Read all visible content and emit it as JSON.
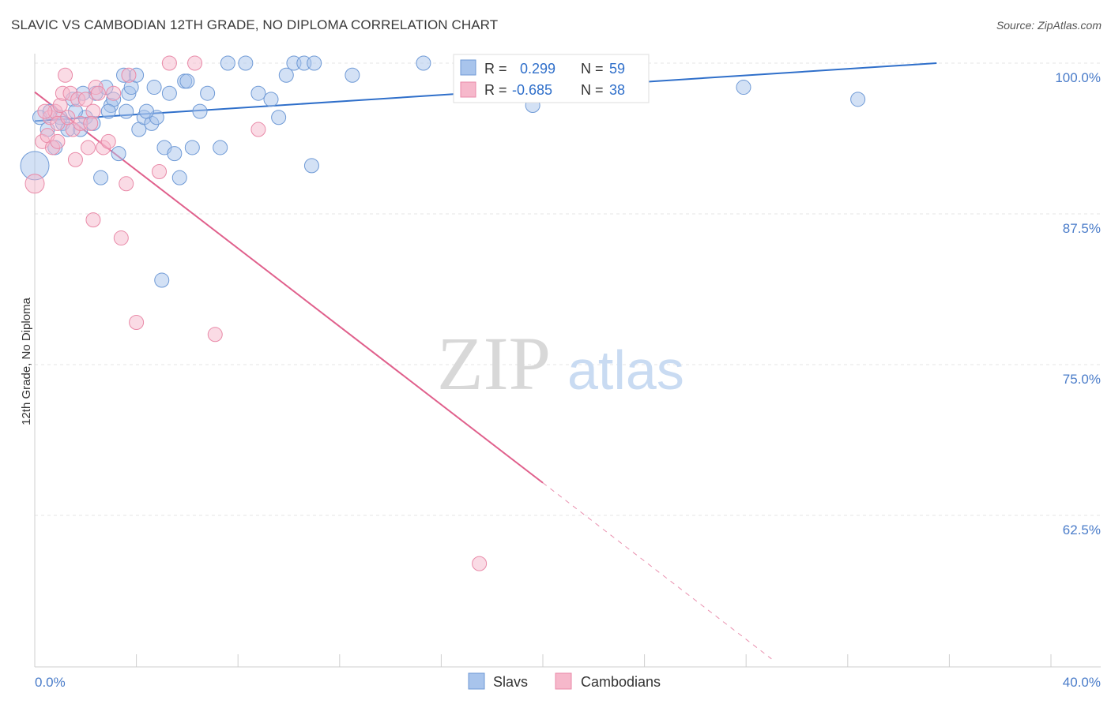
{
  "title": "SLAVIC VS CAMBODIAN 12TH GRADE, NO DIPLOMA CORRELATION CHART",
  "source": "Source: ZipAtlas.com",
  "watermark": {
    "zip": "ZIP",
    "atlas": "atlas"
  },
  "colors": {
    "slavs_fill": "#a8c4ec",
    "slavs_stroke": "#6f9ad6",
    "slavs_line": "#2f6fca",
    "cambodians_fill": "#f6b8cb",
    "cambodians_stroke": "#e98aa8",
    "cambodians_line": "#e0608c",
    "tick_label": "#4a7cc9"
  },
  "stats": [
    {
      "r_label": "R =",
      "r_value": "0.299",
      "n_label": "N =",
      "n_value": "59"
    },
    {
      "r_label": "R =",
      "r_value": "-0.685",
      "n_label": "N =",
      "n_value": "38"
    }
  ],
  "legend": [
    "Slavs",
    "Cambodians"
  ],
  "chart_data": {
    "type": "scatter",
    "title": "SLAVIC VS CAMBODIAN 12TH GRADE, NO DIPLOMA CORRELATION CHART",
    "xlabel": "",
    "ylabel": "12th Grade, No Diploma",
    "x_tick_labels": [
      "0.0%",
      "40.0%"
    ],
    "y_tick_labels": [
      "100.0%",
      "87.5%",
      "75.0%",
      "62.5%"
    ],
    "y_ticks": [
      100.0,
      87.5,
      75.0,
      62.5
    ],
    "xlim": [
      0,
      40
    ],
    "ylim": [
      50,
      101
    ],
    "grid": true,
    "series": [
      {
        "name": "Slavs",
        "points": [
          [
            0.0,
            91.5,
            18
          ],
          [
            0.2,
            95.5,
            9
          ],
          [
            0.5,
            94.5,
            9
          ],
          [
            0.8,
            93.0,
            9
          ],
          [
            1.0,
            95.5,
            9
          ],
          [
            1.1,
            95.0,
            9
          ],
          [
            1.3,
            94.5,
            9
          ],
          [
            1.5,
            97.0,
            9
          ],
          [
            1.8,
            94.5,
            9
          ],
          [
            2.0,
            95.5,
            9
          ],
          [
            2.3,
            95.0,
            9
          ],
          [
            2.4,
            97.5,
            9
          ],
          [
            2.6,
            90.5,
            9
          ],
          [
            2.8,
            98.0,
            9
          ],
          [
            3.0,
            96.5,
            9
          ],
          [
            3.1,
            97.0,
            9
          ],
          [
            3.3,
            92.5,
            9
          ],
          [
            3.5,
            99.0,
            9
          ],
          [
            3.7,
            97.5,
            9
          ],
          [
            3.8,
            98.0,
            9
          ],
          [
            4.0,
            99.0,
            9
          ],
          [
            4.1,
            94.5,
            9
          ],
          [
            4.3,
            95.5,
            9
          ],
          [
            4.6,
            95.0,
            9
          ],
          [
            4.7,
            98.0,
            9
          ],
          [
            4.8,
            95.5,
            9
          ],
          [
            5.0,
            82.0,
            9
          ],
          [
            5.1,
            93.0,
            9
          ],
          [
            5.3,
            97.5,
            9
          ],
          [
            5.5,
            92.5,
            9
          ],
          [
            5.7,
            90.5,
            9
          ],
          [
            5.9,
            98.5,
            9
          ],
          [
            6.0,
            98.5,
            9
          ],
          [
            6.2,
            93.0,
            9
          ],
          [
            6.5,
            96.0,
            9
          ],
          [
            6.8,
            97.5,
            9
          ],
          [
            7.3,
            93.0,
            9
          ],
          [
            7.6,
            100.0,
            9
          ],
          [
            8.3,
            100.0,
            9
          ],
          [
            8.8,
            97.5,
            9
          ],
          [
            9.3,
            97.0,
            9
          ],
          [
            9.6,
            95.5,
            9
          ],
          [
            9.9,
            99.0,
            9
          ],
          [
            10.2,
            100.0,
            9
          ],
          [
            10.6,
            100.0,
            9
          ],
          [
            10.9,
            91.5,
            9
          ],
          [
            11.0,
            100.0,
            9
          ],
          [
            12.5,
            99.0,
            9
          ],
          [
            15.3,
            100.0,
            9
          ],
          [
            16.9,
            100.0,
            9
          ],
          [
            19.6,
            96.5,
            9
          ],
          [
            27.9,
            98.0,
            9
          ],
          [
            32.4,
            97.0,
            9
          ],
          [
            0.6,
            96.0,
            9
          ],
          [
            1.6,
            96.0,
            9
          ],
          [
            2.9,
            96.0,
            9
          ],
          [
            4.4,
            96.0,
            9
          ],
          [
            1.9,
            97.5,
            9
          ],
          [
            3.6,
            96.0,
            9
          ]
        ]
      },
      {
        "name": "Cambodians",
        "points": [
          [
            0.0,
            90.0,
            12
          ],
          [
            0.3,
            93.5,
            9
          ],
          [
            0.5,
            94.0,
            9
          ],
          [
            0.6,
            95.5,
            9
          ],
          [
            0.7,
            93.0,
            9
          ],
          [
            0.8,
            96.0,
            9
          ],
          [
            0.9,
            95.0,
            9
          ],
          [
            1.0,
            96.5,
            9
          ],
          [
            1.1,
            97.5,
            9
          ],
          [
            1.2,
            99.0,
            9
          ],
          [
            1.4,
            97.5,
            9
          ],
          [
            1.5,
            94.5,
            9
          ],
          [
            1.6,
            92.0,
            9
          ],
          [
            1.7,
            97.0,
            9
          ],
          [
            1.8,
            95.0,
            9
          ],
          [
            2.0,
            97.0,
            9
          ],
          [
            2.1,
            93.0,
            9
          ],
          [
            2.3,
            96.0,
            9
          ],
          [
            2.3,
            87.0,
            9
          ],
          [
            2.4,
            98.0,
            9
          ],
          [
            2.5,
            97.5,
            9
          ],
          [
            2.7,
            93.0,
            9
          ],
          [
            2.9,
            93.5,
            9
          ],
          [
            3.1,
            97.5,
            9
          ],
          [
            3.4,
            85.5,
            9
          ],
          [
            3.6,
            90.0,
            9
          ],
          [
            3.7,
            99.0,
            9
          ],
          [
            4.0,
            78.5,
            9
          ],
          [
            4.9,
            91.0,
            9
          ],
          [
            5.3,
            100.0,
            9
          ],
          [
            6.3,
            100.0,
            9
          ],
          [
            7.1,
            77.5,
            9
          ],
          [
            8.8,
            94.5,
            9
          ],
          [
            17.5,
            58.5,
            9
          ],
          [
            0.4,
            96.0,
            9
          ],
          [
            1.3,
            95.5,
            9
          ],
          [
            2.2,
            95.0,
            9
          ],
          [
            0.9,
            93.5,
            9
          ]
        ]
      }
    ],
    "trendlines": [
      {
        "series": "Slavs",
        "from": [
          0,
          95.2
        ],
        "to": [
          35.5,
          100.0
        ],
        "dashed_to": null
      },
      {
        "series": "Cambodians",
        "from": [
          0,
          97.6
        ],
        "to": [
          20.0,
          65.2
        ],
        "dashed_to": [
          29.0,
          50.6
        ]
      }
    ]
  }
}
